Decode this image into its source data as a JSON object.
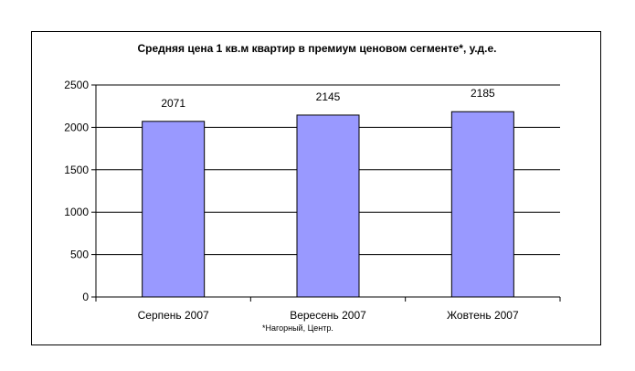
{
  "chart_data": {
    "type": "bar",
    "title": "Средняя цена 1 кв.м квартир в премиум ценовом сегменте*, у.д.е.",
    "categories": [
      "Серпень 2007",
      "Вересень 2007",
      "Жовтень 2007"
    ],
    "values": [
      2071,
      2145,
      2185
    ],
    "data_labels": [
      "2071",
      "2145",
      "2185"
    ],
    "y_ticks": [
      "0",
      "500",
      "1000",
      "1500",
      "2000",
      "2500"
    ],
    "ylim": [
      0,
      2500
    ],
    "grid": true,
    "legend": "none",
    "footnote": "*Нагорный, Центр.",
    "colors": {
      "bar_fill": "#9999FF",
      "bar_stroke": "#000000",
      "grid": "#000000",
      "axis": "#000000"
    }
  }
}
